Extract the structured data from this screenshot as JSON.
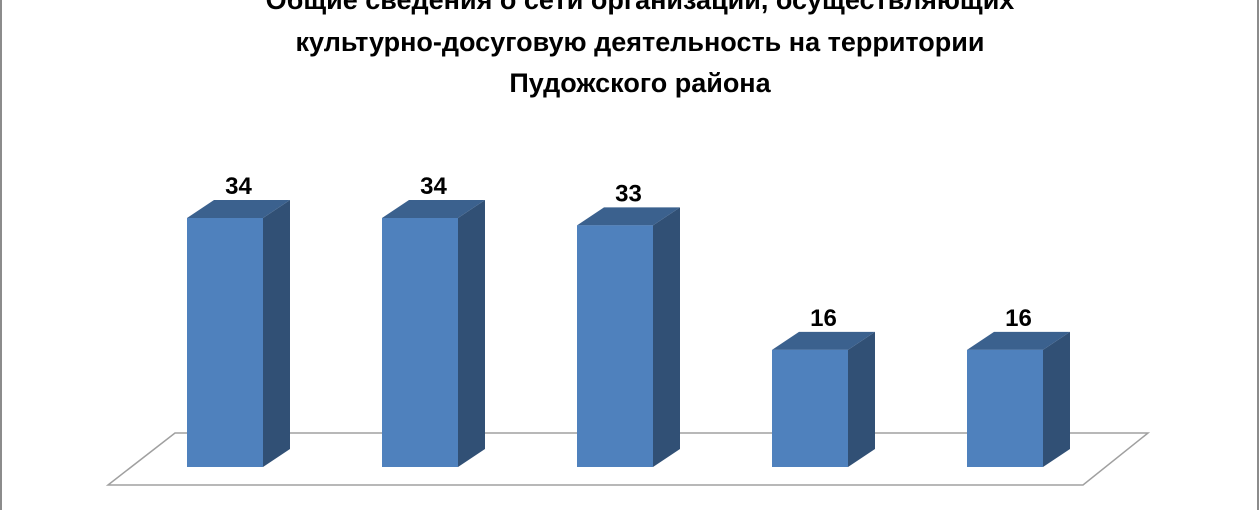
{
  "chart_data": {
    "type": "bar3d",
    "title": [
      "Общие сведения о сети организаций, осуществляющих",
      "культурно-досуговую деятельность на территории",
      "Пудожского района"
    ],
    "categories": [
      null,
      null,
      null,
      null,
      null
    ],
    "values": [
      34,
      34,
      33,
      16,
      16
    ],
    "color": "#4f81bd"
  }
}
